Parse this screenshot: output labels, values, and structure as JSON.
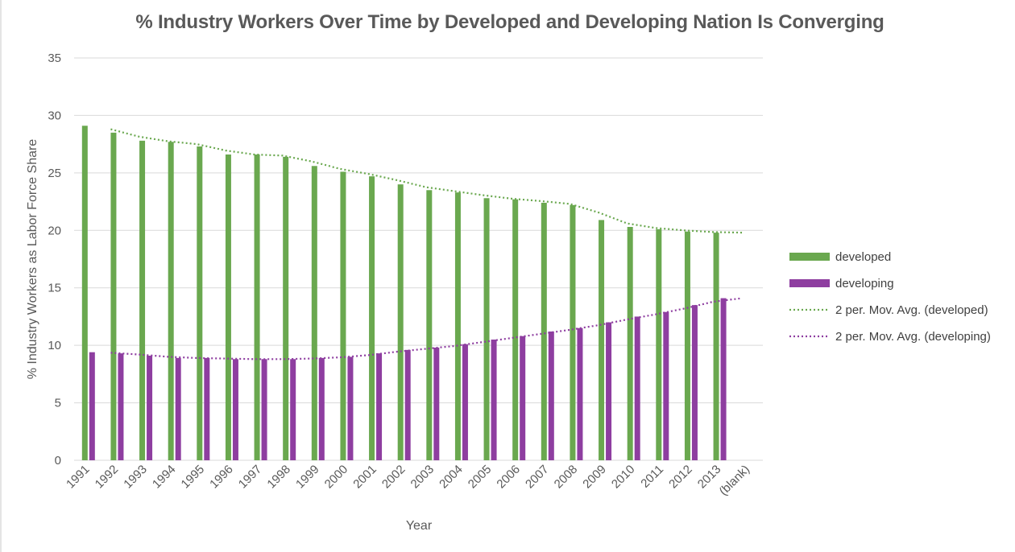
{
  "chart_data": {
    "type": "bar",
    "title": "% Industry Workers Over Time by Developed and Developing Nation Is Converging",
    "xlabel": "Year",
    "ylabel": "% Industry Workers as Labor Force Share",
    "ylim": [
      0,
      35
    ],
    "yticks": [
      0,
      5,
      10,
      15,
      20,
      25,
      30,
      35
    ],
    "grid": true,
    "legend_position": "right",
    "categories": [
      "1991",
      "1992",
      "1993",
      "1994",
      "1995",
      "1996",
      "1997",
      "1998",
      "1999",
      "2000",
      "2001",
      "2002",
      "2003",
      "2004",
      "2005",
      "2006",
      "2007",
      "2008",
      "2009",
      "2010",
      "2011",
      "2012",
      "2013",
      "(blank)"
    ],
    "series": [
      {
        "name": "developed",
        "color": "#6aa84f",
        "values": [
          29.1,
          28.5,
          27.8,
          27.7,
          27.3,
          26.6,
          26.6,
          26.4,
          25.6,
          25.1,
          24.7,
          24.0,
          23.5,
          23.3,
          22.8,
          22.7,
          22.4,
          22.2,
          20.9,
          20.3,
          20.1,
          19.9,
          19.8,
          null
        ]
      },
      {
        "name": "developing",
        "color": "#8e3ea0",
        "values": [
          9.4,
          9.3,
          9.1,
          8.9,
          8.9,
          8.8,
          8.8,
          8.8,
          8.9,
          9.0,
          9.3,
          9.6,
          9.8,
          10.1,
          10.5,
          10.8,
          11.2,
          11.5,
          12.0,
          12.5,
          12.9,
          13.5,
          14.1,
          null
        ]
      }
    ],
    "trendlines": [
      {
        "name": "2 per. Mov. Avg. (developed)",
        "series": "developed",
        "color": "#6aa84f",
        "values": [
          null,
          28.8,
          28.15,
          27.75,
          27.5,
          26.95,
          26.6,
          26.5,
          26.0,
          25.35,
          24.9,
          24.35,
          23.75,
          23.4,
          23.05,
          22.75,
          22.55,
          22.3,
          21.55,
          20.6,
          20.2,
          20.0,
          19.85,
          19.8
        ]
      },
      {
        "name": "2 per. Mov. Avg. (developing)",
        "series": "developing",
        "color": "#8e3ea0",
        "values": [
          null,
          9.35,
          9.2,
          9.0,
          8.9,
          8.85,
          8.8,
          8.8,
          8.85,
          8.95,
          9.15,
          9.45,
          9.7,
          9.95,
          10.3,
          10.65,
          11.0,
          11.35,
          11.75,
          12.25,
          12.7,
          13.2,
          13.8,
          14.1
        ]
      }
    ]
  },
  "legend": {
    "items": [
      {
        "label": "developed",
        "kind": "bar",
        "color": "#6aa84f"
      },
      {
        "label": "developing",
        "kind": "bar",
        "color": "#8e3ea0"
      },
      {
        "label": "2 per. Mov. Avg. (developed)",
        "kind": "dotted-line",
        "color": "#6aa84f"
      },
      {
        "label": "2 per. Mov. Avg. (developing)",
        "kind": "dotted-line",
        "color": "#8e3ea0"
      }
    ]
  }
}
